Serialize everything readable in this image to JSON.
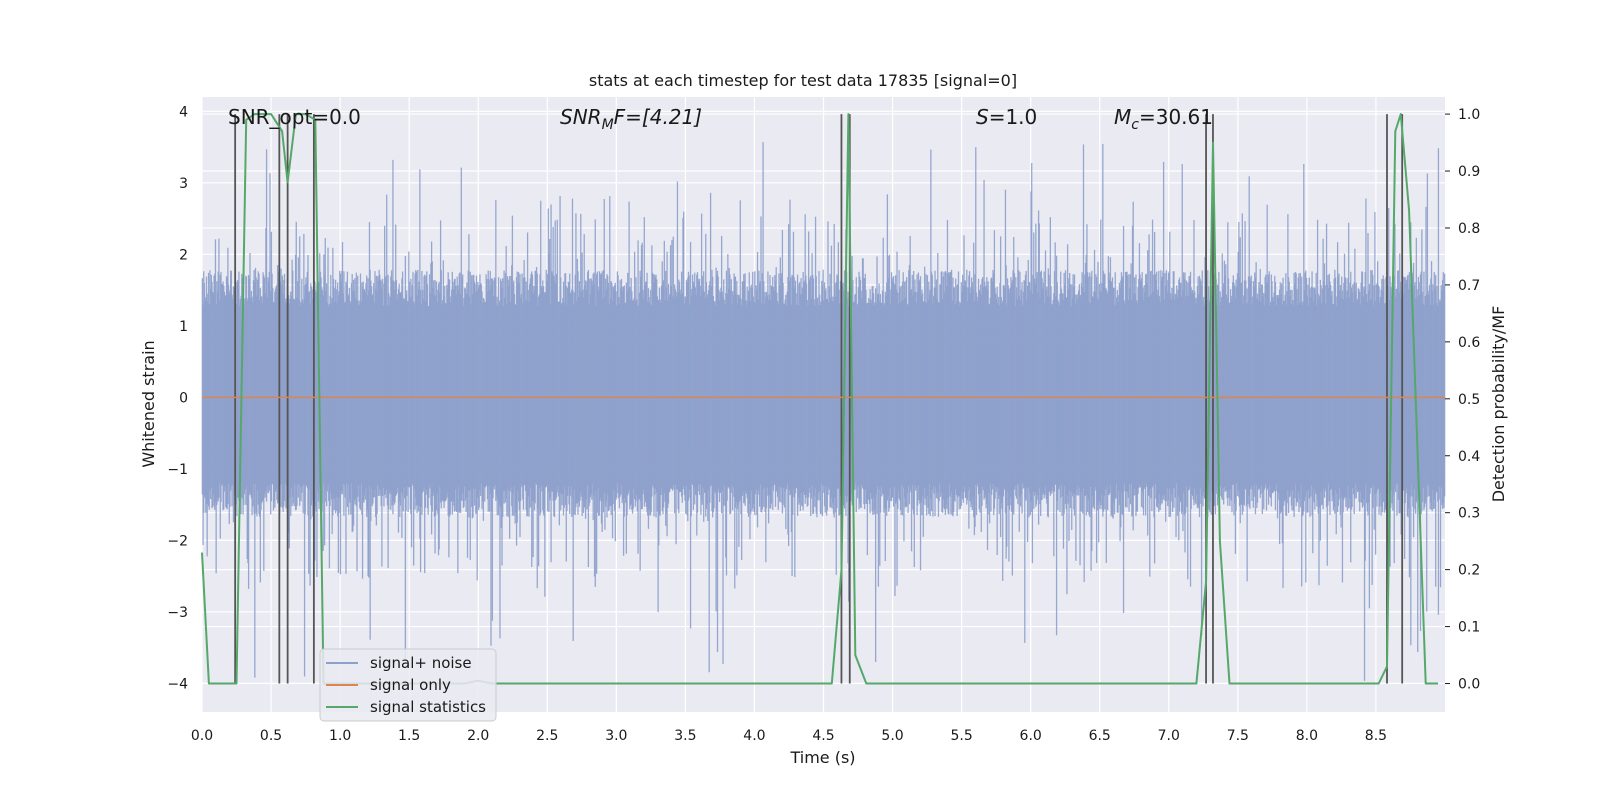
{
  "chart_data": {
    "type": "line",
    "title": "stats at each timestep for test data 17835 [signal=0]",
    "xlabel": "Time (s)",
    "ylabel_left": "Whitened strain",
    "ylabel_right": "Detection probability/MF",
    "xlim": [
      0,
      9.0
    ],
    "ylim_left": [
      -4.4,
      4.2
    ],
    "ylim_right": [
      -0.05,
      1.03
    ],
    "grid": true,
    "legend_position": "lower-left",
    "x_ticks": [
      "0.0",
      "0.5",
      "1.0",
      "1.5",
      "2.0",
      "2.5",
      "3.0",
      "3.5",
      "4.0",
      "4.5",
      "5.0",
      "5.5",
      "6.0",
      "6.5",
      "7.0",
      "7.5",
      "8.0",
      "8.5"
    ],
    "y_ticks_left": [
      "−4",
      "−3",
      "−2",
      "−1",
      "0",
      "1",
      "2",
      "3",
      "4"
    ],
    "y_ticks_right": [
      "0.0",
      "0.1",
      "0.2",
      "0.3",
      "0.4",
      "0.5",
      "0.6",
      "0.7",
      "0.8",
      "0.9",
      "1.0"
    ],
    "colors": {
      "signal_noise": "#8da0cb",
      "signal_only": "#dd8452",
      "signal_statistics": "#55a868",
      "vlines": "#555555",
      "axes_bg": "#eaeaf2",
      "grid": "#ffffff"
    },
    "annotations": {
      "snr_opt": "SNR_opt=0.0",
      "snr_mf_main": "SNR",
      "snr_mf_sub": "M",
      "snr_mf_rest": "F=[4.21]",
      "s_var": "S",
      "s_rest": "=1.0",
      "mc_var": "M",
      "mc_sub": "c",
      "mc_rest": "=30.61"
    },
    "series": [
      {
        "name": "signal+ noise",
        "description_type": "noise band",
        "envelope_typical": [
          -1.6,
          1.7
        ],
        "envelope_extreme": [
          -4.0,
          3.7
        ]
      },
      {
        "name": "signal only",
        "x": [
          0,
          9.0
        ],
        "y": [
          0,
          0
        ]
      },
      {
        "name": "signal statistics",
        "axis": "right",
        "x": [
          0.0,
          0.05,
          0.25,
          0.32,
          0.38,
          0.5,
          0.58,
          0.62,
          0.68,
          0.75,
          0.82,
          0.88,
          0.94,
          1.9,
          2.0,
          2.1,
          4.2,
          4.56,
          4.63,
          4.68,
          4.73,
          4.81,
          7.2,
          7.27,
          7.32,
          7.37,
          7.44,
          8.52,
          8.58,
          8.64,
          8.68,
          8.74,
          8.86,
          8.95
        ],
        "y": [
          0.23,
          0.0,
          0.0,
          0.99,
          1.0,
          1.0,
          0.97,
          0.88,
          1.0,
          1.0,
          0.99,
          0.0,
          0.0,
          0.0,
          0.005,
          0.0,
          0.0,
          0.0,
          0.2,
          1.0,
          0.05,
          0.0,
          0.0,
          0.18,
          0.95,
          0.25,
          0.0,
          0.0,
          0.03,
          0.97,
          1.0,
          0.83,
          0.0,
          0.0
        ]
      }
    ],
    "vlines_x": [
      0.24,
      0.56,
      0.62,
      0.81,
      4.63,
      4.69,
      7.27,
      7.32,
      8.58,
      8.69
    ]
  }
}
